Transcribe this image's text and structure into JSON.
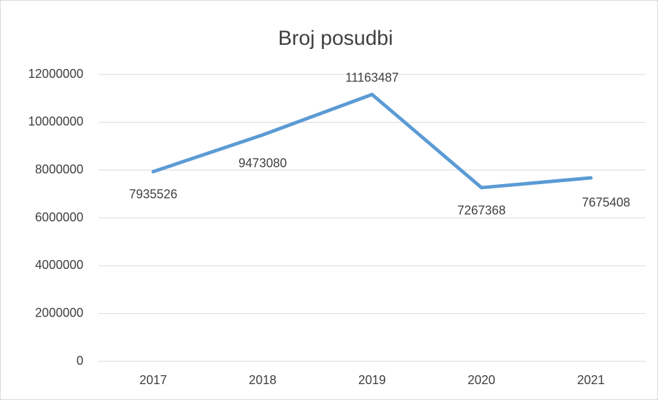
{
  "chart_data": {
    "type": "line",
    "title": "Broj posudbi",
    "categories": [
      "2017",
      "2018",
      "2019",
      "2020",
      "2021"
    ],
    "values": [
      7935526,
      9473080,
      11163487,
      7267368,
      7675408
    ],
    "color": "#5b9bd5",
    "ylim": [
      0,
      12000000
    ],
    "yticks": [
      0,
      2000000,
      4000000,
      6000000,
      8000000,
      10000000,
      12000000
    ],
    "grid": true
  }
}
